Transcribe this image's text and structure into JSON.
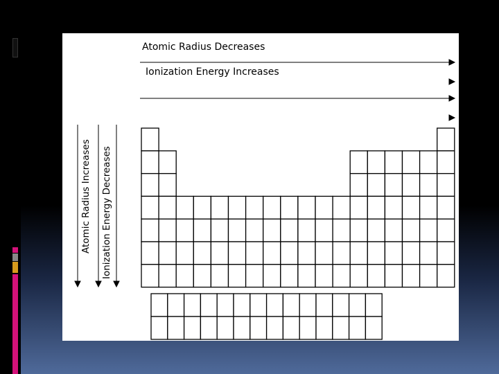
{
  "labels": {
    "atomic_radius_decreases": "Atomic Radius Decreases",
    "ionization_energy_increases": "Ionization Energy Increases",
    "atomic_radius_increases": "Atomic Radius Increases",
    "ionization_energy_decreases": "Ionization Energy Decreases"
  },
  "colors": {
    "accent_pink": "#d4127a",
    "accent_gold": "#d79b1d",
    "accent_gray": "#888888",
    "background_bottom": "#4f6a9a"
  }
}
